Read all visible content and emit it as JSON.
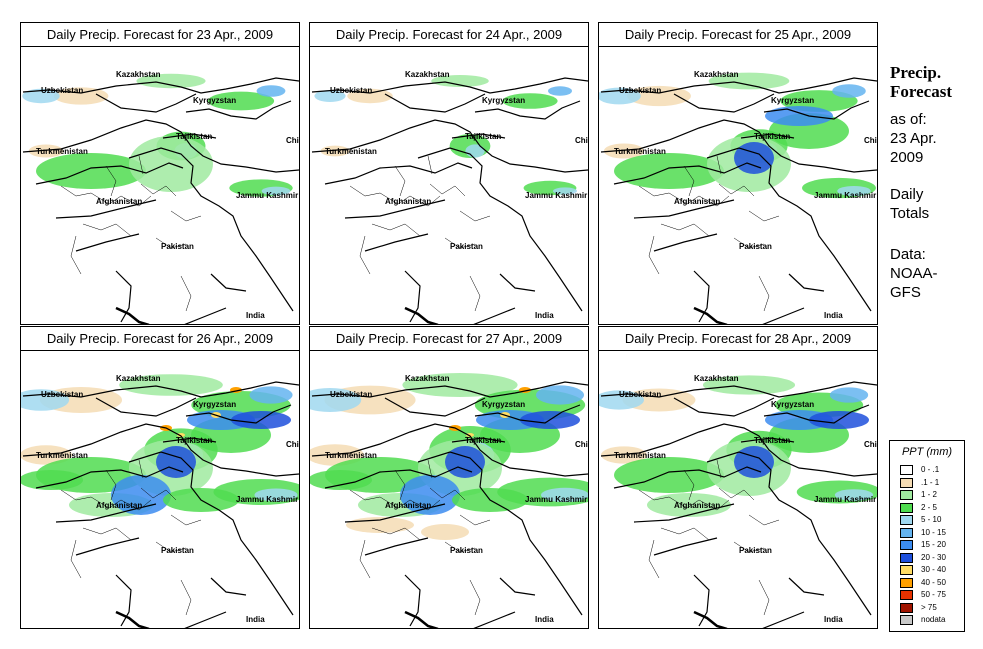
{
  "panels": [
    {
      "title": "Daily Precip. Forecast for  23 Apr., 2009",
      "intensity": 1
    },
    {
      "title": "Daily Precip. Forecast for  24 Apr., 2009",
      "intensity": 0
    },
    {
      "title": "Daily Precip. Forecast for  25 Apr., 2009",
      "intensity": 2
    },
    {
      "title": "Daily Precip. Forecast for  26 Apr., 2009",
      "intensity": 4
    },
    {
      "title": "Daily Precip. Forecast for  27 Apr., 2009",
      "intensity": 5
    },
    {
      "title": "Daily Precip. Forecast for  28 Apr., 2009",
      "intensity": 3
    }
  ],
  "map_labels": [
    "Kazakhstan",
    "Uzbekistan",
    "Kyrgyzstan",
    "Tajikistan",
    "China",
    "Turkmenistan",
    "Afghanistan",
    "Jammu Kashmir",
    "Pakistan",
    "India"
  ],
  "side": {
    "title_line1": "Precip.",
    "title_line2": "Forecast",
    "asof_line1": "as of:",
    "asof_line2": "23 Apr.",
    "asof_line3": "2009",
    "daily_line1": "Daily",
    "daily_line2": "Totals",
    "data_line1": "Data:",
    "data_line2": "NOAA-",
    "data_line3": "GFS"
  },
  "legend": {
    "title": "PPT (mm)",
    "items": [
      {
        "label": "0 - .1",
        "color": "#ffffff"
      },
      {
        "label": ".1 - 1",
        "color": "#f5dcb4"
      },
      {
        "label": "1 - 2",
        "color": "#a0eaa0"
      },
      {
        "label": "2 - 5",
        "color": "#50dc50"
      },
      {
        "label": "5 - 10",
        "color": "#a0d8f0"
      },
      {
        "label": "10 - 15",
        "color": "#64b4f0"
      },
      {
        "label": "15 - 20",
        "color": "#3c8cf0"
      },
      {
        "label": "20 - 30",
        "color": "#1e50dc"
      },
      {
        "label": "30 - 40",
        "color": "#ffdc64"
      },
      {
        "label": "40 - 50",
        "color": "#ffa000"
      },
      {
        "label": "50 - 75",
        "color": "#e63200"
      },
      {
        "label": "> 75",
        "color": "#a01400"
      },
      {
        "label": "nodata",
        "color": "#c8c8c8"
      }
    ]
  }
}
